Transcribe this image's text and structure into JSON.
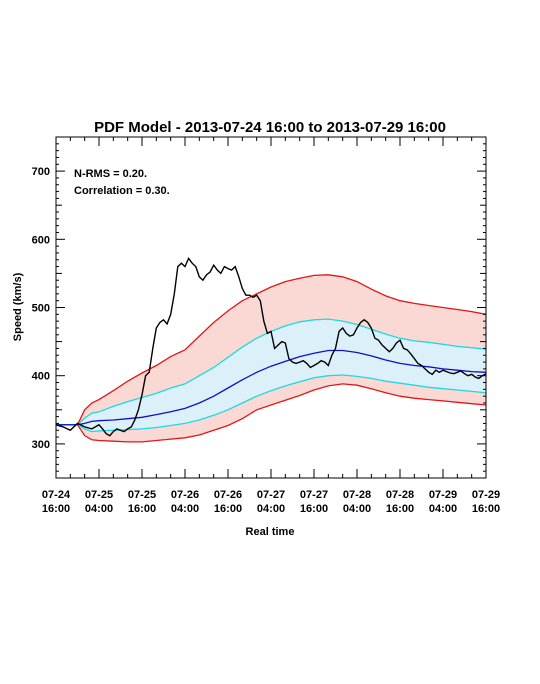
{
  "chart_data": {
    "type": "line",
    "title": "PDF Model - 2013-07-24 16:00 to 2013-07-29 16:00",
    "xlabel": "Real time",
    "ylabel": "Speed (km/s)",
    "x_unit": "hours",
    "xlim": [
      0,
      120
    ],
    "ylim": [
      250,
      750
    ],
    "y_ticks": [
      300,
      400,
      500,
      600,
      700
    ],
    "x_ticks": [
      {
        "x": 0,
        "date": "07-24",
        "time": "16:00"
      },
      {
        "x": 12,
        "date": "07-25",
        "time": "04:00"
      },
      {
        "x": 24,
        "date": "07-25",
        "time": "16:00"
      },
      {
        "x": 36,
        "date": "07-26",
        "time": "04:00"
      },
      {
        "x": 48,
        "date": "07-26",
        "time": "16:00"
      },
      {
        "x": 60,
        "date": "07-27",
        "time": "04:00"
      },
      {
        "x": 72,
        "date": "07-27",
        "time": "16:00"
      },
      {
        "x": 84,
        "date": "07-28",
        "time": "04:00"
      },
      {
        "x": 96,
        "date": "07-28",
        "time": "16:00"
      },
      {
        "x": 108,
        "date": "07-29",
        "time": "04:00"
      },
      {
        "x": 120,
        "date": "07-29",
        "time": "16:00"
      }
    ],
    "annotations": [
      "N-RMS = 0.20.",
      "Correlation = 0.30."
    ],
    "colors": {
      "observed": "#000000",
      "median": "#1010c8",
      "inner_band": "#20d8e0",
      "inner_fill": "#dcf0fa",
      "outer_band": "#e01818",
      "outer_fill": "#fad9d5"
    },
    "x": [
      0,
      6,
      8,
      10,
      12,
      16,
      20,
      24,
      28,
      32,
      36,
      40,
      44,
      48,
      52,
      56,
      60,
      64,
      68,
      72,
      76,
      80,
      84,
      88,
      92,
      96,
      100,
      104,
      108,
      112,
      116,
      120
    ],
    "series": [
      {
        "role": "outer_upper",
        "values": [
          328,
          328,
          350,
          360,
          365,
          378,
          392,
          404,
          415,
          428,
          438,
          458,
          478,
          495,
          510,
          520,
          530,
          538,
          543,
          547,
          548,
          545,
          538,
          527,
          517,
          510,
          506,
          503,
          500,
          497,
          494,
          490
        ]
      },
      {
        "role": "inner_upper",
        "values": [
          328,
          328,
          338,
          345,
          347,
          355,
          362,
          368,
          374,
          382,
          388,
          400,
          412,
          427,
          442,
          455,
          465,
          473,
          479,
          482,
          483,
          480,
          475,
          468,
          461,
          455,
          451,
          449,
          446,
          443,
          441,
          439
        ]
      },
      {
        "role": "median",
        "values": [
          328,
          328,
          330,
          333,
          334,
          335,
          337,
          339,
          343,
          347,
          352,
          360,
          370,
          382,
          394,
          405,
          414,
          421,
          428,
          433,
          437,
          437,
          434,
          429,
          423,
          418,
          415,
          413,
          410,
          408,
          406,
          405
        ]
      },
      {
        "role": "inner_lower",
        "values": [
          328,
          328,
          322,
          318,
          319,
          320,
          321,
          322,
          324,
          327,
          330,
          335,
          342,
          350,
          360,
          370,
          378,
          385,
          391,
          397,
          400,
          401,
          399,
          396,
          392,
          389,
          386,
          383,
          381,
          379,
          377,
          375
        ]
      },
      {
        "role": "outer_lower",
        "values": [
          328,
          328,
          312,
          306,
          305,
          304,
          303,
          303,
          305,
          307,
          309,
          313,
          320,
          327,
          337,
          350,
          357,
          364,
          371,
          379,
          385,
          388,
          386,
          381,
          375,
          370,
          367,
          365,
          363,
          361,
          359,
          357
        ]
      }
    ],
    "observed": {
      "x": [
        0,
        2,
        4,
        6,
        8,
        10,
        12,
        13,
        14,
        15,
        16,
        17,
        18,
        19,
        20,
        21,
        22,
        23,
        24,
        25,
        26,
        27,
        28,
        29,
        30,
        31,
        32,
        33,
        34,
        35,
        36,
        37,
        38,
        39,
        40,
        41,
        42,
        43,
        44,
        45,
        46,
        47,
        48,
        49,
        50,
        51,
        52,
        53,
        54,
        55,
        56,
        57,
        58,
        59,
        60,
        61,
        62,
        63,
        64,
        65,
        66,
        67,
        68,
        69,
        70,
        71,
        72,
        73,
        74,
        75,
        76,
        77,
        78,
        79,
        80,
        81,
        82,
        83,
        84,
        85,
        86,
        87,
        88,
        89,
        90,
        91,
        92,
        93,
        94,
        95,
        96,
        97,
        98,
        99,
        100,
        101,
        102,
        103,
        104,
        105,
        106,
        107,
        108,
        109,
        110,
        111,
        112,
        113,
        114,
        115,
        116,
        117,
        118,
        119,
        120
      ],
      "values": [
        328,
        325,
        320,
        330,
        325,
        322,
        328,
        322,
        315,
        312,
        318,
        322,
        320,
        318,
        322,
        325,
        335,
        350,
        372,
        400,
        405,
        440,
        470,
        478,
        482,
        476,
        490,
        520,
        560,
        565,
        560,
        572,
        565,
        560,
        545,
        540,
        548,
        552,
        562,
        555,
        550,
        560,
        557,
        555,
        560,
        545,
        528,
        518,
        518,
        515,
        518,
        510,
        480,
        462,
        465,
        440,
        445,
        450,
        448,
        425,
        420,
        418,
        420,
        422,
        418,
        412,
        415,
        418,
        422,
        420,
        415,
        430,
        440,
        465,
        470,
        462,
        458,
        460,
        470,
        478,
        482,
        478,
        470,
        455,
        452,
        445,
        440,
        435,
        440,
        448,
        452,
        440,
        438,
        432,
        425,
        418,
        415,
        410,
        405,
        402,
        408,
        405,
        408,
        406,
        404,
        403,
        405,
        407,
        403,
        400,
        402,
        398,
        396,
        400,
        403
      ]
    }
  }
}
